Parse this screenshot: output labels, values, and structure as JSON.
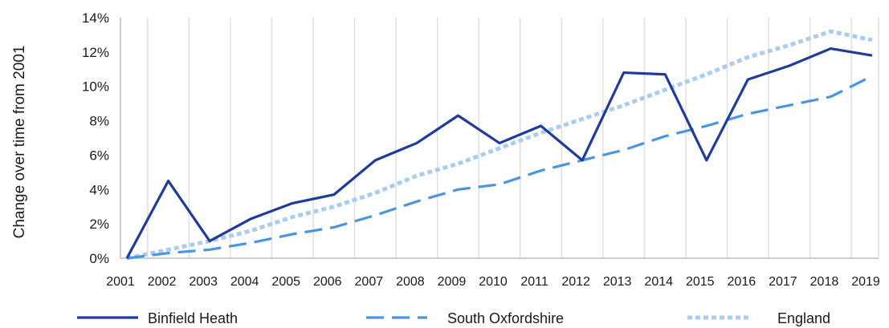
{
  "chart_data": {
    "type": "line",
    "ylabel": "Change over  time from 2001",
    "xlabel": "",
    "x": [
      "2001",
      "2002",
      "2003",
      "2004",
      "2005",
      "2006",
      "2007",
      "2008",
      "2009",
      "2010",
      "2011",
      "2012",
      "2013",
      "2014",
      "2015",
      "2016",
      "2017",
      "2018",
      "2019"
    ],
    "yticks": [
      "0%",
      "2%",
      "4%",
      "6%",
      "8%",
      "10%",
      "12%",
      "14%"
    ],
    "ylim": [
      0,
      14
    ],
    "grid": "vertical",
    "legend_position": "bottom",
    "series": [
      {
        "name": "Binfield Heath",
        "color": "#1f3c9c",
        "style": "solid",
        "values": [
          0.0,
          4.5,
          1.0,
          2.3,
          3.2,
          3.7,
          5.7,
          6.7,
          8.3,
          6.7,
          7.7,
          5.7,
          10.8,
          10.7,
          5.7,
          10.4,
          11.2,
          12.2,
          11.8
        ]
      },
      {
        "name": "South Oxfordshire",
        "color": "#4b95e0",
        "style": "dashed",
        "values": [
          0.0,
          0.3,
          0.5,
          0.9,
          1.4,
          1.8,
          2.5,
          3.3,
          4.0,
          4.3,
          5.1,
          5.7,
          6.3,
          7.1,
          7.7,
          8.4,
          8.9,
          9.4,
          10.6
        ]
      },
      {
        "name": "England",
        "color": "#a9cdf0",
        "style": "dotted",
        "values": [
          0.0,
          0.5,
          1.0,
          1.6,
          2.4,
          3.0,
          3.8,
          4.8,
          5.5,
          6.4,
          7.3,
          8.1,
          8.9,
          9.8,
          10.7,
          11.7,
          12.4,
          13.2,
          12.7
        ]
      }
    ]
  }
}
